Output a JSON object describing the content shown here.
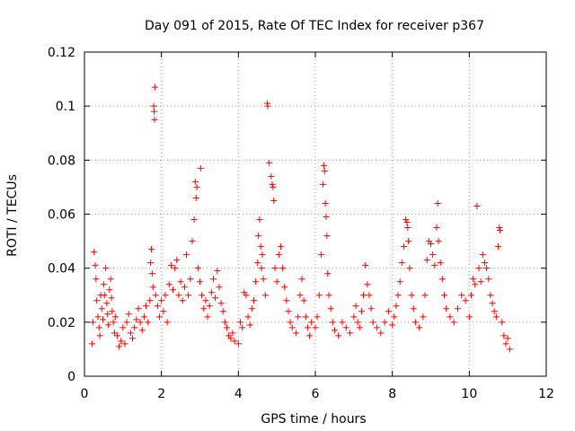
{
  "chart_data": {
    "type": "scatter",
    "title": "Day 091 of 2015, Rate Of TEC Index for receiver p367",
    "xlabel": "GPS time / hours",
    "ylabel": "ROTI / TECUs",
    "xlim": [
      0,
      12
    ],
    "ylim": [
      0,
      0.12
    ],
    "xticks": [
      0,
      2,
      4,
      6,
      8,
      10,
      12
    ],
    "yticks": [
      0,
      0.02,
      0.04,
      0.06,
      0.08,
      0.1,
      0.12
    ],
    "xtick_labels": [
      "0",
      "2",
      "4",
      "6",
      "8",
      "10",
      "12"
    ],
    "ytick_labels": [
      "0",
      "0.02",
      "0.04",
      "0.06",
      "0.08",
      "0.1",
      "0.12"
    ],
    "grid": true,
    "marker": "+",
    "series_color": "#ff0000",
    "series": [
      {
        "name": "ROTI",
        "points": [
          [
            0.2,
            0.012
          ],
          [
            0.22,
            0.02
          ],
          [
            0.25,
            0.046
          ],
          [
            0.28,
            0.041
          ],
          [
            0.3,
            0.036
          ],
          [
            0.32,
            0.028
          ],
          [
            0.35,
            0.022
          ],
          [
            0.38,
            0.018
          ],
          [
            0.4,
            0.015
          ],
          [
            0.42,
            0.03
          ],
          [
            0.45,
            0.025
          ],
          [
            0.48,
            0.021
          ],
          [
            0.5,
            0.034
          ],
          [
            0.52,
            0.03
          ],
          [
            0.55,
            0.04
          ],
          [
            0.58,
            0.027
          ],
          [
            0.6,
            0.023
          ],
          [
            0.62,
            0.019
          ],
          [
            0.65,
            0.032
          ],
          [
            0.68,
            0.036
          ],
          [
            0.7,
            0.029
          ],
          [
            0.72,
            0.024
          ],
          [
            0.75,
            0.02
          ],
          [
            0.78,
            0.016
          ],
          [
            0.8,
            0.022
          ],
          [
            0.85,
            0.015
          ],
          [
            0.9,
            0.011
          ],
          [
            0.95,
            0.013
          ],
          [
            1.0,
            0.018
          ],
          [
            1.05,
            0.012
          ],
          [
            1.1,
            0.02
          ],
          [
            1.15,
            0.023
          ],
          [
            1.2,
            0.016
          ],
          [
            1.25,
            0.014
          ],
          [
            1.3,
            0.018
          ],
          [
            1.35,
            0.021
          ],
          [
            1.4,
            0.025
          ],
          [
            1.45,
            0.02
          ],
          [
            1.5,
            0.017
          ],
          [
            1.55,
            0.022
          ],
          [
            1.6,
            0.026
          ],
          [
            1.65,
            0.02
          ],
          [
            1.7,
            0.028
          ],
          [
            1.72,
            0.042
          ],
          [
            1.74,
            0.047
          ],
          [
            1.76,
            0.038
          ],
          [
            1.78,
            0.033
          ],
          [
            1.8,
            0.1
          ],
          [
            1.81,
            0.098
          ],
          [
            1.82,
            0.095
          ],
          [
            1.83,
            0.107
          ],
          [
            1.85,
            0.03
          ],
          [
            1.9,
            0.026
          ],
          [
            1.95,
            0.022
          ],
          [
            2.0,
            0.028
          ],
          [
            2.05,
            0.024
          ],
          [
            2.1,
            0.03
          ],
          [
            2.15,
            0.02
          ],
          [
            2.2,
            0.034
          ],
          [
            2.25,
            0.041
          ],
          [
            2.3,
            0.032
          ],
          [
            2.35,
            0.04
          ],
          [
            2.4,
            0.043
          ],
          [
            2.45,
            0.03
          ],
          [
            2.5,
            0.035
          ],
          [
            2.55,
            0.028
          ],
          [
            2.6,
            0.033
          ],
          [
            2.65,
            0.045
          ],
          [
            2.7,
            0.03
          ],
          [
            2.75,
            0.036
          ],
          [
            2.8,
            0.05
          ],
          [
            2.85,
            0.058
          ],
          [
            2.88,
            0.072
          ],
          [
            2.9,
            0.066
          ],
          [
            2.92,
            0.07
          ],
          [
            2.95,
            0.04
          ],
          [
            3.0,
            0.035
          ],
          [
            3.02,
            0.077
          ],
          [
            3.05,
            0.03
          ],
          [
            3.1,
            0.025
          ],
          [
            3.15,
            0.028
          ],
          [
            3.2,
            0.022
          ],
          [
            3.25,
            0.026
          ],
          [
            3.3,
            0.031
          ],
          [
            3.35,
            0.036
          ],
          [
            3.4,
            0.029
          ],
          [
            3.45,
            0.039
          ],
          [
            3.5,
            0.033
          ],
          [
            3.55,
            0.027
          ],
          [
            3.6,
            0.024
          ],
          [
            3.65,
            0.02
          ],
          [
            3.7,
            0.018
          ],
          [
            3.75,
            0.015
          ],
          [
            3.8,
            0.014
          ],
          [
            3.85,
            0.016
          ],
          [
            3.9,
            0.013
          ],
          [
            4.0,
            0.012
          ],
          [
            4.05,
            0.02
          ],
          [
            4.1,
            0.018
          ],
          [
            4.15,
            0.031
          ],
          [
            4.2,
            0.03
          ],
          [
            4.25,
            0.022
          ],
          [
            4.3,
            0.019
          ],
          [
            4.35,
            0.025
          ],
          [
            4.4,
            0.028
          ],
          [
            4.45,
            0.035
          ],
          [
            4.5,
            0.042
          ],
          [
            4.52,
            0.052
          ],
          [
            4.55,
            0.058
          ],
          [
            4.58,
            0.048
          ],
          [
            4.6,
            0.04
          ],
          [
            4.62,
            0.045
          ],
          [
            4.65,
            0.036
          ],
          [
            4.7,
            0.03
          ],
          [
            4.75,
            0.101
          ],
          [
            4.76,
            0.1
          ],
          [
            4.8,
            0.079
          ],
          [
            4.85,
            0.074
          ],
          [
            4.88,
            0.071
          ],
          [
            4.9,
            0.07
          ],
          [
            4.92,
            0.065
          ],
          [
            4.95,
            0.04
          ],
          [
            5.0,
            0.035
          ],
          [
            5.05,
            0.045
          ],
          [
            5.1,
            0.048
          ],
          [
            5.15,
            0.04
          ],
          [
            5.2,
            0.033
          ],
          [
            5.25,
            0.028
          ],
          [
            5.3,
            0.024
          ],
          [
            5.35,
            0.02
          ],
          [
            5.4,
            0.018
          ],
          [
            5.5,
            0.016
          ],
          [
            5.55,
            0.022
          ],
          [
            5.6,
            0.03
          ],
          [
            5.65,
            0.036
          ],
          [
            5.7,
            0.028
          ],
          [
            5.75,
            0.022
          ],
          [
            5.8,
            0.018
          ],
          [
            5.85,
            0.015
          ],
          [
            5.9,
            0.02
          ],
          [
            6.0,
            0.018
          ],
          [
            6.05,
            0.022
          ],
          [
            6.1,
            0.03
          ],
          [
            6.15,
            0.045
          ],
          [
            6.2,
            0.071
          ],
          [
            6.22,
            0.078
          ],
          [
            6.24,
            0.076
          ],
          [
            6.26,
            0.064
          ],
          [
            6.28,
            0.059
          ],
          [
            6.3,
            0.052
          ],
          [
            6.32,
            0.038
          ],
          [
            6.35,
            0.03
          ],
          [
            6.4,
            0.025
          ],
          [
            6.45,
            0.02
          ],
          [
            6.5,
            0.017
          ],
          [
            6.6,
            0.015
          ],
          [
            6.7,
            0.02
          ],
          [
            6.8,
            0.018
          ],
          [
            6.9,
            0.016
          ],
          [
            7.0,
            0.022
          ],
          [
            7.05,
            0.026
          ],
          [
            7.1,
            0.02
          ],
          [
            7.15,
            0.018
          ],
          [
            7.2,
            0.024
          ],
          [
            7.25,
            0.03
          ],
          [
            7.3,
            0.041
          ],
          [
            7.35,
            0.034
          ],
          [
            7.4,
            0.03
          ],
          [
            7.45,
            0.025
          ],
          [
            7.5,
            0.02
          ],
          [
            7.6,
            0.018
          ],
          [
            7.7,
            0.016
          ],
          [
            7.8,
            0.02
          ],
          [
            7.9,
            0.024
          ],
          [
            8.0,
            0.019
          ],
          [
            8.05,
            0.022
          ],
          [
            8.1,
            0.026
          ],
          [
            8.15,
            0.03
          ],
          [
            8.2,
            0.035
          ],
          [
            8.25,
            0.042
          ],
          [
            8.3,
            0.048
          ],
          [
            8.35,
            0.058
          ],
          [
            8.38,
            0.057
          ],
          [
            8.4,
            0.055
          ],
          [
            8.42,
            0.05
          ],
          [
            8.45,
            0.04
          ],
          [
            8.5,
            0.03
          ],
          [
            8.55,
            0.025
          ],
          [
            8.6,
            0.02
          ],
          [
            8.7,
            0.018
          ],
          [
            8.8,
            0.022
          ],
          [
            8.85,
            0.03
          ],
          [
            8.9,
            0.043
          ],
          [
            8.95,
            0.05
          ],
          [
            9.0,
            0.049
          ],
          [
            9.05,
            0.045
          ],
          [
            9.1,
            0.041
          ],
          [
            9.15,
            0.055
          ],
          [
            9.18,
            0.064
          ],
          [
            9.2,
            0.05
          ],
          [
            9.25,
            0.042
          ],
          [
            9.3,
            0.036
          ],
          [
            9.35,
            0.03
          ],
          [
            9.4,
            0.025
          ],
          [
            9.5,
            0.022
          ],
          [
            9.6,
            0.02
          ],
          [
            9.7,
            0.025
          ],
          [
            9.8,
            0.03
          ],
          [
            9.9,
            0.028
          ],
          [
            10.0,
            0.022
          ],
          [
            10.05,
            0.03
          ],
          [
            10.1,
            0.036
          ],
          [
            10.15,
            0.034
          ],
          [
            10.2,
            0.063
          ],
          [
            10.25,
            0.04
          ],
          [
            10.3,
            0.035
          ],
          [
            10.35,
            0.045
          ],
          [
            10.4,
            0.042
          ],
          [
            10.45,
            0.04
          ],
          [
            10.5,
            0.036
          ],
          [
            10.55,
            0.03
          ],
          [
            10.6,
            0.027
          ],
          [
            10.65,
            0.024
          ],
          [
            10.7,
            0.022
          ],
          [
            10.75,
            0.048
          ],
          [
            10.78,
            0.055
          ],
          [
            10.8,
            0.054
          ],
          [
            10.85,
            0.02
          ],
          [
            10.9,
            0.015
          ],
          [
            10.95,
            0.012
          ],
          [
            11.0,
            0.014
          ],
          [
            11.05,
            0.01
          ]
        ]
      }
    ]
  }
}
